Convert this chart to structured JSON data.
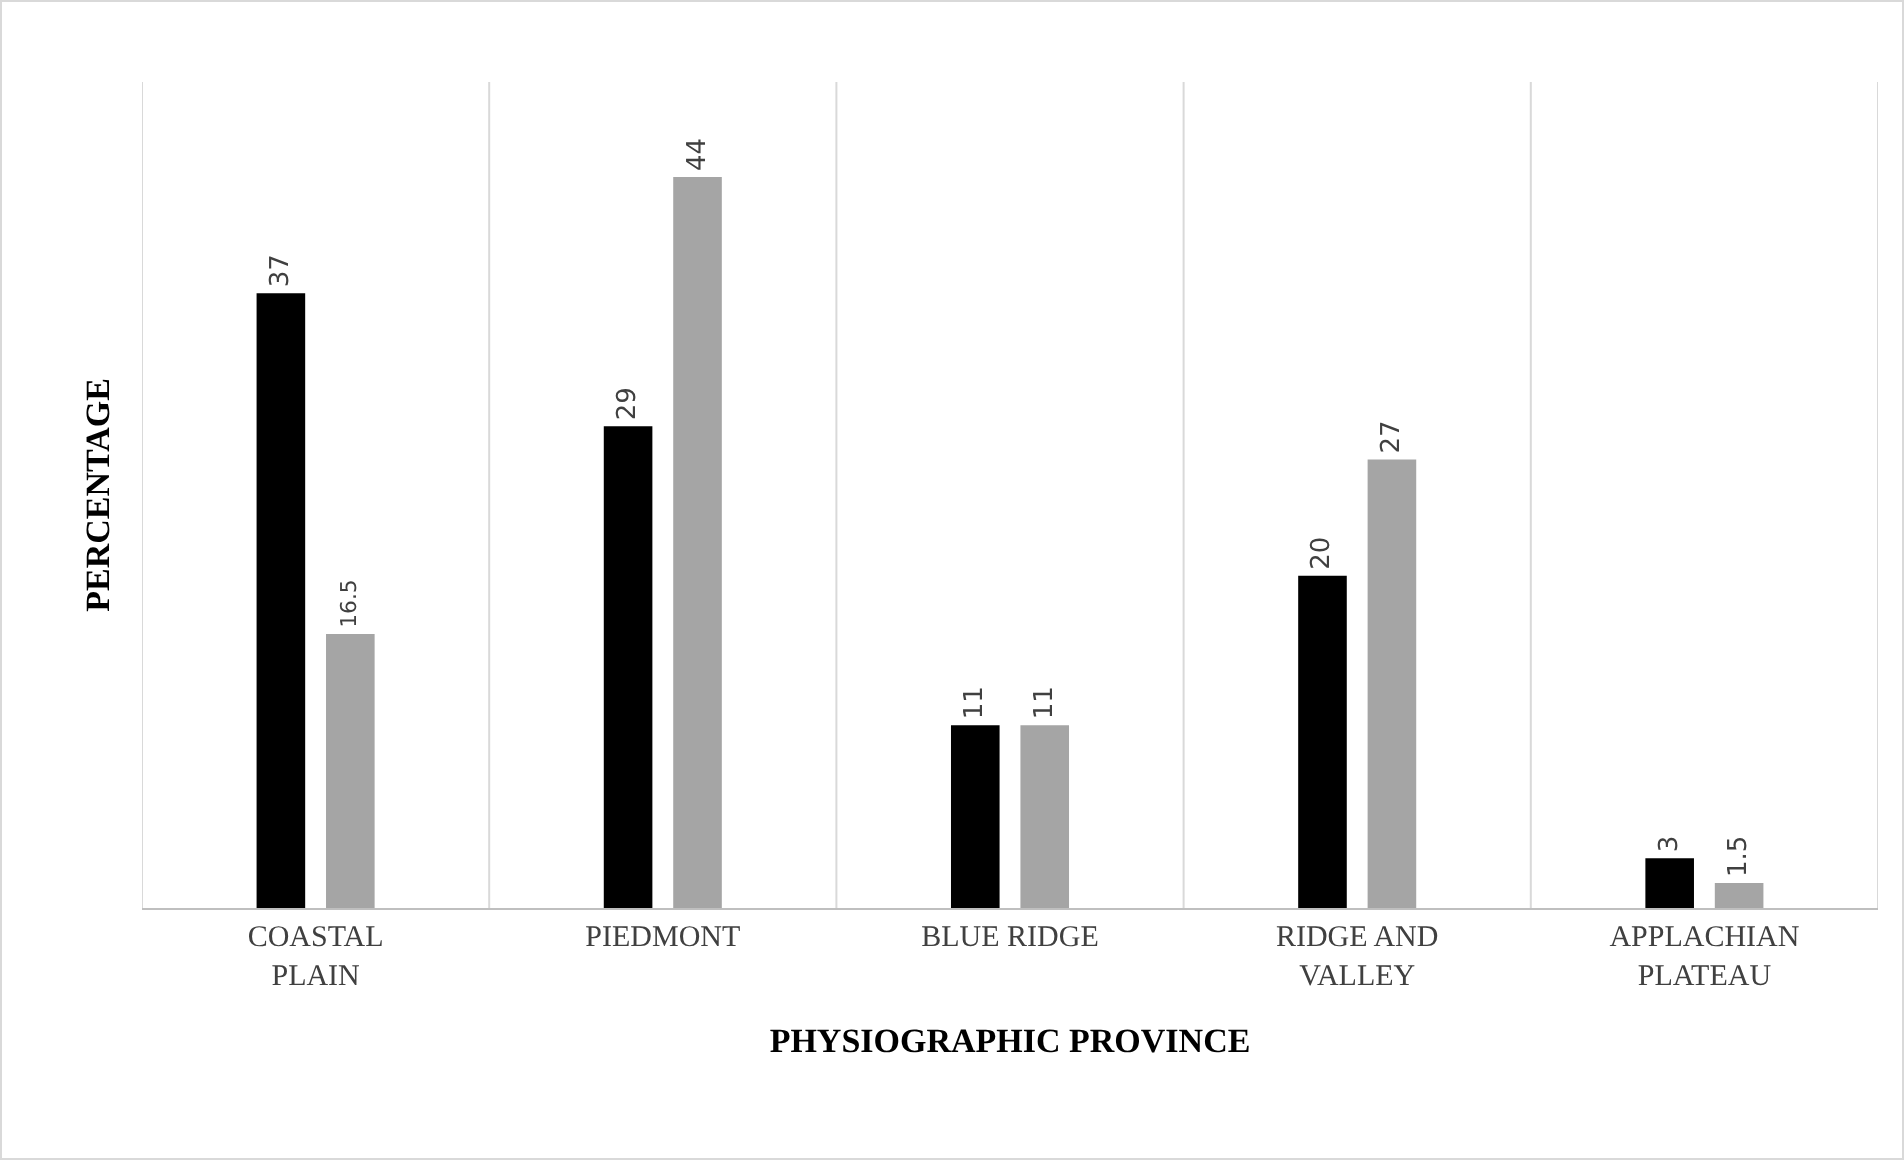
{
  "chart_data": {
    "type": "bar",
    "xlabel": "PHYSIOGRAPHIC PROVINCE",
    "ylabel": "PERCENTAGE",
    "categories": [
      "COASTAL PLAIN",
      "PIEDMONT",
      "BLUE RIDGE",
      "RIDGE AND VALLEY",
      "APPLACHIAN PLATEAU"
    ],
    "series": [
      {
        "color": "#000000",
        "values": [
          37,
          29,
          11,
          20,
          3
        ]
      },
      {
        "color": "#a5a5a5",
        "values": [
          16.5,
          44,
          11,
          27,
          1.5
        ]
      }
    ],
    "data_labels": true,
    "grid": "x"
  }
}
